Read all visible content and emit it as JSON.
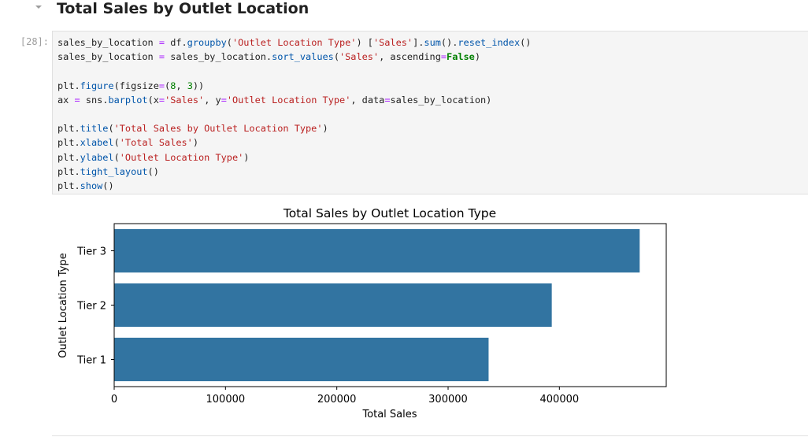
{
  "section": {
    "heading": "Total Sales by Outlet Location"
  },
  "cell": {
    "prompt": "[28]:",
    "code_lines": [
      [
        {
          "t": "sales_by_location ",
          "c": "plain"
        },
        {
          "t": "=",
          "c": "op"
        },
        {
          "t": " df.",
          "c": "plain"
        },
        {
          "t": "groupby",
          "c": "fn"
        },
        {
          "t": "(",
          "c": "plain"
        },
        {
          "t": "'Outlet Location Type'",
          "c": "str"
        },
        {
          "t": ") [",
          "c": "plain"
        },
        {
          "t": "'Sales'",
          "c": "str"
        },
        {
          "t": "].",
          "c": "plain"
        },
        {
          "t": "sum",
          "c": "fn"
        },
        {
          "t": "().",
          "c": "plain"
        },
        {
          "t": "reset_index",
          "c": "fn"
        },
        {
          "t": "()",
          "c": "plain"
        }
      ],
      [
        {
          "t": "sales_by_location ",
          "c": "plain"
        },
        {
          "t": "=",
          "c": "op"
        },
        {
          "t": " sales_by_location.",
          "c": "plain"
        },
        {
          "t": "sort_values",
          "c": "fn"
        },
        {
          "t": "(",
          "c": "plain"
        },
        {
          "t": "'Sales'",
          "c": "str"
        },
        {
          "t": ", ascending",
          "c": "plain"
        },
        {
          "t": "=",
          "c": "op"
        },
        {
          "t": "False",
          "c": "kw"
        },
        {
          "t": ")",
          "c": "plain"
        }
      ],
      [],
      [
        {
          "t": "plt.",
          "c": "plain"
        },
        {
          "t": "figure",
          "c": "fn"
        },
        {
          "t": "(figsize",
          "c": "plain"
        },
        {
          "t": "=",
          "c": "op"
        },
        {
          "t": "(",
          "c": "plain"
        },
        {
          "t": "8",
          "c": "num"
        },
        {
          "t": ", ",
          "c": "plain"
        },
        {
          "t": "3",
          "c": "num"
        },
        {
          "t": "))",
          "c": "plain"
        }
      ],
      [
        {
          "t": "ax ",
          "c": "plain"
        },
        {
          "t": "=",
          "c": "op"
        },
        {
          "t": " sns.",
          "c": "plain"
        },
        {
          "t": "barplot",
          "c": "fn"
        },
        {
          "t": "(x",
          "c": "plain"
        },
        {
          "t": "=",
          "c": "op"
        },
        {
          "t": "'Sales'",
          "c": "str"
        },
        {
          "t": ", y",
          "c": "plain"
        },
        {
          "t": "=",
          "c": "op"
        },
        {
          "t": "'Outlet Location Type'",
          "c": "str"
        },
        {
          "t": ", data",
          "c": "plain"
        },
        {
          "t": "=",
          "c": "op"
        },
        {
          "t": "sales_by_location)",
          "c": "plain"
        }
      ],
      [],
      [
        {
          "t": "plt.",
          "c": "plain"
        },
        {
          "t": "title",
          "c": "fn"
        },
        {
          "t": "(",
          "c": "plain"
        },
        {
          "t": "'Total Sales by Outlet Location Type'",
          "c": "str"
        },
        {
          "t": ")",
          "c": "plain"
        }
      ],
      [
        {
          "t": "plt.",
          "c": "plain"
        },
        {
          "t": "xlabel",
          "c": "fn"
        },
        {
          "t": "(",
          "c": "plain"
        },
        {
          "t": "'Total Sales'",
          "c": "str"
        },
        {
          "t": ")",
          "c": "plain"
        }
      ],
      [
        {
          "t": "plt.",
          "c": "plain"
        },
        {
          "t": "ylabel",
          "c": "fn"
        },
        {
          "t": "(",
          "c": "plain"
        },
        {
          "t": "'Outlet Location Type'",
          "c": "str"
        },
        {
          "t": ")",
          "c": "plain"
        }
      ],
      [
        {
          "t": "plt.",
          "c": "plain"
        },
        {
          "t": "tight_layout",
          "c": "fn"
        },
        {
          "t": "()",
          "c": "plain"
        }
      ],
      [
        {
          "t": "plt.",
          "c": "plain"
        },
        {
          "t": "show",
          "c": "fn"
        },
        {
          "t": "()",
          "c": "plain"
        }
      ]
    ]
  },
  "icons": {
    "collapse": "chevron-down-icon"
  },
  "colors": {
    "bar": "#3274a1",
    "code_bg": "#f5f5f5",
    "string": "#ba2121",
    "function": "#0055aa",
    "operator": "#aa22ff",
    "number_keyword": "#008000"
  },
  "chart_data": {
    "type": "bar",
    "orientation": "horizontal",
    "title": "Total Sales by Outlet Location Type",
    "xlabel": "Total Sales",
    "ylabel": "Outlet Location Type",
    "categories": [
      "Tier 3",
      "Tier 2",
      "Tier 1"
    ],
    "values": [
      472133,
      393150,
      336398
    ],
    "xlim": [
      0,
      496000
    ],
    "xticks": [
      0,
      100000,
      200000,
      300000,
      400000
    ],
    "xtick_labels": [
      "0",
      "100000",
      "200000",
      "300000",
      "400000"
    ],
    "grid": false,
    "legend": "none"
  }
}
